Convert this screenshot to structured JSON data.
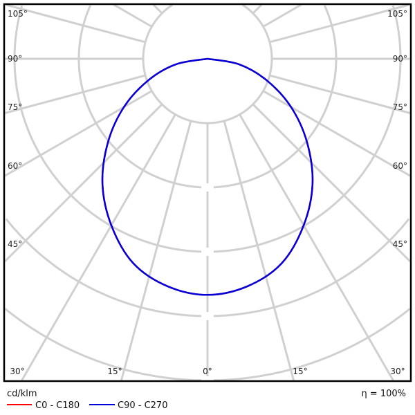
{
  "chart_data": {
    "type": "polar",
    "unit_label": "cd/klm",
    "efficiency_label": "η = 100%",
    "angle_labels": {
      "left": [
        "105°",
        "90°",
        "75°",
        "60°",
        "45°",
        "30°",
        "15°"
      ],
      "center": "0°",
      "right": [
        "105°",
        "90°",
        "75°",
        "60°",
        "45°",
        "30°",
        "15°"
      ]
    },
    "angular_grid_step_deg": 15,
    "radial_tick_labels": [],
    "grid": true,
    "legend_position": "bottom-left",
    "series": [
      {
        "name": "C0 - C180",
        "color": "#ff0000",
        "angles_deg": [
          0,
          10,
          20,
          30,
          40,
          50,
          60,
          70,
          80,
          90
        ],
        "relative_intensity": [
          3.67,
          3.59,
          3.38,
          2.99,
          2.54,
          2.02,
          1.5,
          0.98,
          0.5,
          0
        ]
      },
      {
        "name": "C90 - C270",
        "color": "#0000dd",
        "angles_deg": [
          0,
          10,
          20,
          30,
          40,
          50,
          60,
          70,
          80,
          90
        ],
        "relative_intensity": [
          3.67,
          3.59,
          3.38,
          2.99,
          2.54,
          2.02,
          1.5,
          0.98,
          0.5,
          0
        ]
      }
    ]
  }
}
